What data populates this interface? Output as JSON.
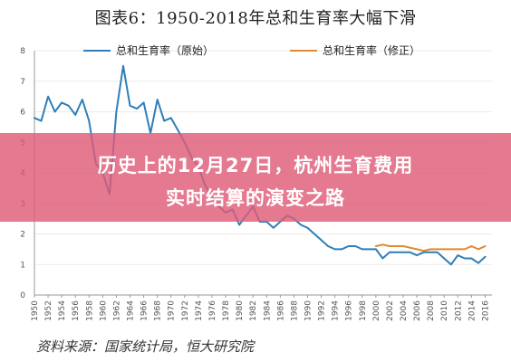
{
  "page": {
    "title": "图表6：1950-2018年总和生育率大幅下滑",
    "source": "资料来源：国家统计局，恒大研究院",
    "overlay": {
      "line1": "历史上的12月27日，杭州生育费用",
      "line2": "实时结算的演变之路"
    }
  },
  "colors": {
    "original_series": "#2E7FB8",
    "revised_series": "#E08A2C",
    "grid": "#ebebeb",
    "axis": "#999999",
    "banner": "#DE5C78"
  },
  "chart_data": {
    "type": "line",
    "title": "图表6：1950-2018年总和生育率大幅下滑",
    "xlabel": "",
    "ylabel": "",
    "xlim": [
      1950,
      2017
    ],
    "ylim": [
      0,
      8
    ],
    "y_ticks": [
      0,
      1,
      2,
      3,
      4,
      5,
      6,
      7,
      8
    ],
    "x_ticks": [
      1950,
      1952,
      1954,
      1956,
      1958,
      1960,
      1962,
      1964,
      1966,
      1968,
      1970,
      1972,
      1974,
      1976,
      1978,
      1980,
      1982,
      1984,
      1986,
      1988,
      1990,
      1992,
      1994,
      1996,
      1998,
      2000,
      2002,
      2004,
      2006,
      2008,
      2010,
      2012,
      2014,
      2016
    ],
    "grid": "horizontal",
    "legend_position": "top",
    "series": [
      {
        "name": "总和生育率（原始）",
        "color": "#2E7FB8",
        "x": [
          1950,
          1951,
          1952,
          1953,
          1954,
          1955,
          1956,
          1957,
          1958,
          1959,
          1960,
          1961,
          1962,
          1963,
          1964,
          1965,
          1966,
          1967,
          1968,
          1969,
          1970,
          1971,
          1972,
          1973,
          1974,
          1975,
          1976,
          1977,
          1978,
          1979,
          1980,
          1981,
          1982,
          1983,
          1984,
          1985,
          1986,
          1987,
          1988,
          1989,
          1990,
          1991,
          1992,
          1993,
          1994,
          1995,
          1996,
          1997,
          1998,
          1999,
          2000,
          2001,
          2002,
          2003,
          2004,
          2005,
          2006,
          2007,
          2008,
          2009,
          2010,
          2011,
          2012,
          2013,
          2014,
          2015,
          2016
        ],
        "y": [
          5.8,
          5.7,
          6.5,
          6.0,
          6.3,
          6.2,
          5.9,
          6.4,
          5.7,
          4.3,
          4.0,
          3.3,
          6.0,
          7.5,
          6.2,
          6.1,
          6.3,
          5.3,
          6.4,
          5.7,
          5.8,
          5.4,
          5.0,
          4.5,
          4.2,
          3.6,
          3.2,
          2.9,
          2.7,
          2.8,
          2.3,
          2.6,
          2.9,
          2.4,
          2.4,
          2.2,
          2.4,
          2.6,
          2.5,
          2.3,
          2.2,
          2.0,
          1.8,
          1.6,
          1.5,
          1.5,
          1.6,
          1.6,
          1.5,
          1.5,
          1.5,
          1.2,
          1.4,
          1.4,
          1.4,
          1.4,
          1.3,
          1.4,
          1.4,
          1.4,
          1.2,
          1.0,
          1.3,
          1.2,
          1.2,
          1.05,
          1.25
        ]
      },
      {
        "name": "总和生育率（修正）",
        "color": "#E08A2C",
        "x": [
          2000,
          2001,
          2002,
          2003,
          2004,
          2005,
          2006,
          2007,
          2008,
          2009,
          2010,
          2011,
          2012,
          2013,
          2014,
          2015,
          2016
        ],
        "y": [
          1.6,
          1.65,
          1.6,
          1.6,
          1.6,
          1.55,
          1.5,
          1.45,
          1.5,
          1.5,
          1.5,
          1.5,
          1.5,
          1.5,
          1.6,
          1.5,
          1.6
        ]
      }
    ]
  }
}
